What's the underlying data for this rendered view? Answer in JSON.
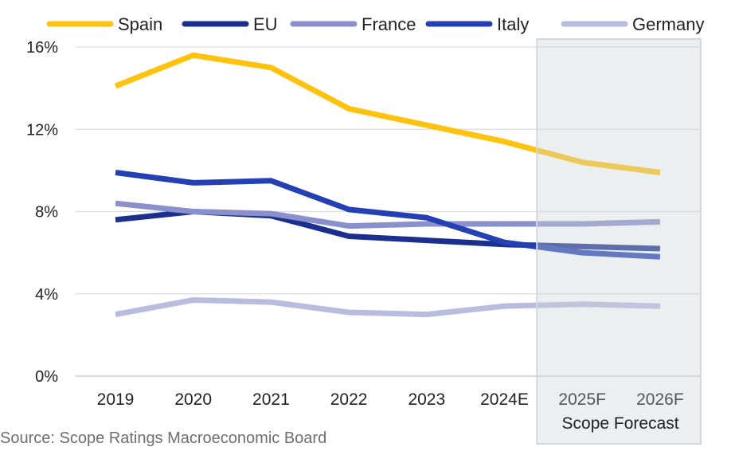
{
  "chart_data": {
    "type": "line",
    "categories": [
      "2019",
      "2020",
      "2021",
      "2022",
      "2023",
      "2024E",
      "2025F",
      "2026F"
    ],
    "ylim": [
      0,
      16
    ],
    "yticks": [
      0,
      4,
      8,
      12,
      16
    ],
    "ytick_labels": [
      "0%",
      "4%",
      "8%",
      "12%",
      "16%"
    ],
    "grid": true,
    "legend_position": "top",
    "forecast_label": "Scope Forecast",
    "forecast_start_category": "2025F",
    "series": [
      {
        "name": "Spain",
        "color": "#ffc20e",
        "values": [
          14.1,
          15.6,
          15.0,
          13.0,
          12.2,
          11.4,
          10.4,
          9.9
        ]
      },
      {
        "name": "EU",
        "color": "#1b2f8f",
        "values": [
          7.6,
          8.0,
          7.8,
          6.8,
          6.6,
          6.4,
          6.3,
          6.2
        ]
      },
      {
        "name": "France",
        "color": "#8a90cc",
        "values": [
          8.4,
          8.0,
          7.9,
          7.3,
          7.4,
          7.4,
          7.4,
          7.5
        ]
      },
      {
        "name": "Italy",
        "color": "#2440b3",
        "values": [
          9.9,
          9.4,
          9.5,
          8.1,
          7.7,
          6.5,
          6.0,
          5.8
        ]
      },
      {
        "name": "Germany",
        "color": "#b8bcdf",
        "values": [
          3.0,
          3.7,
          3.6,
          3.1,
          3.0,
          3.4,
          3.5,
          3.4
        ]
      }
    ]
  },
  "source": "Source: Scope Ratings Macroeconomic Board"
}
